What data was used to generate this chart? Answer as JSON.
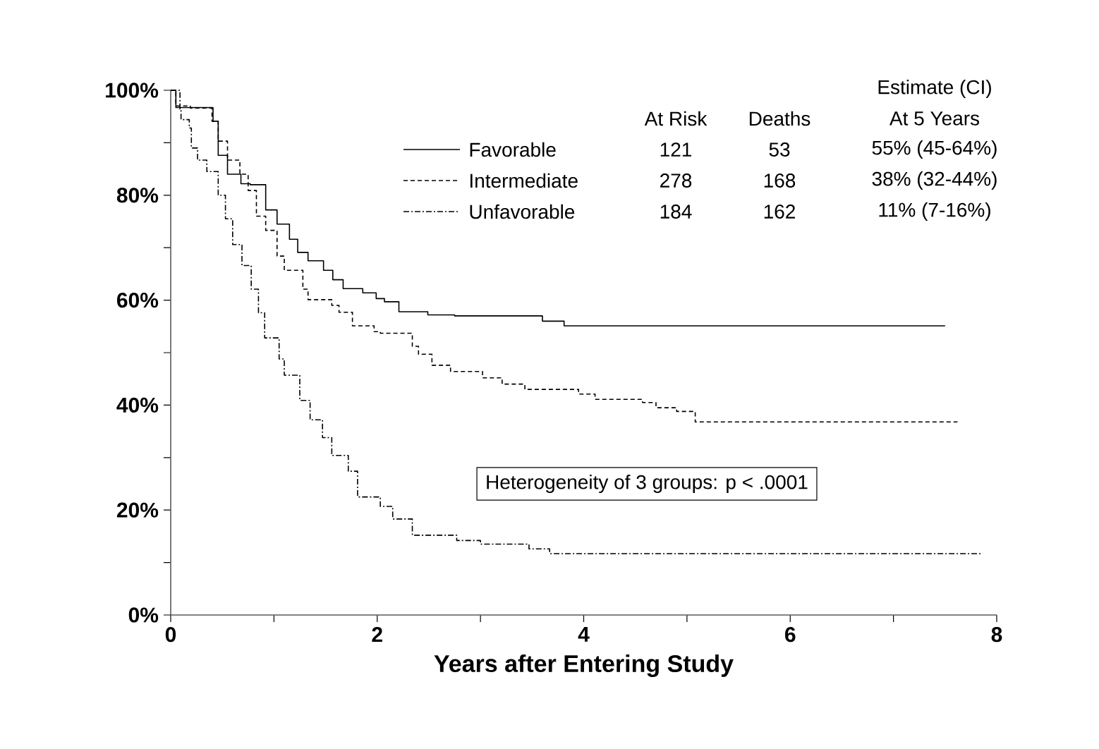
{
  "chart_data": {
    "type": "step",
    "xlabel": "Years after Entering Study",
    "xlim": [
      0,
      8
    ],
    "ylim": [
      0,
      100
    ],
    "xticks": [
      0,
      {
        "value": 1,
        "label": null
      },
      2,
      {
        "value": 3,
        "label": null
      },
      4,
      {
        "value": 5,
        "label": null
      },
      6,
      {
        "value": 7,
        "label": null
      },
      8
    ],
    "yticks": [
      {
        "value": 0,
        "label": "0%"
      },
      {
        "value": 10,
        "label": null
      },
      {
        "value": 20,
        "label": "20%"
      },
      {
        "value": 30,
        "label": null
      },
      {
        "value": 40,
        "label": "40%"
      },
      {
        "value": 50,
        "label": null
      },
      {
        "value": 60,
        "label": "60%"
      },
      {
        "value": 70,
        "label": null
      },
      {
        "value": 80,
        "label": "80%"
      },
      {
        "value": 90,
        "label": null
      },
      {
        "value": 100,
        "label": "100%"
      }
    ],
    "grid": false,
    "legend": "top",
    "series": [
      {
        "name": "Favorable",
        "color": "#000000",
        "line_style": "solid",
        "x": [
          0,
          0.05,
          0.41,
          0.46,
          0.55,
          0.68,
          0.77,
          0.92,
          1.03,
          1.15,
          1.23,
          1.33,
          1.48,
          1.57,
          1.67,
          1.86,
          1.99,
          2.07,
          2.21,
          2.49,
          2.75,
          3.6,
          3.81,
          7.5
        ],
        "values": [
          100,
          96.7,
          94.1,
          87.6,
          84.0,
          82.2,
          82.0,
          77.2,
          74.5,
          71.6,
          69.1,
          67.5,
          65.7,
          63.9,
          62.2,
          61.4,
          60.3,
          59.7,
          57.8,
          57.2,
          57.0,
          56.0,
          55.1,
          55.1
        ]
      },
      {
        "name": "Intermediate",
        "color": "#000000",
        "line_style": "dashed",
        "x": [
          0,
          0.05,
          0.19,
          0.4,
          0.46,
          0.55,
          0.67,
          0.75,
          0.83,
          0.92,
          1.03,
          1.1,
          1.28,
          1.33,
          1.56,
          1.63,
          1.76,
          1.97,
          2.03,
          2.34,
          2.4,
          2.53,
          2.71,
          3.02,
          3.21,
          3.43,
          3.95,
          4.11,
          4.57,
          4.7,
          4.9,
          5.08,
          7.62
        ],
        "values": [
          100,
          97,
          96.6,
          94.1,
          90.3,
          86.7,
          84.0,
          80.9,
          76.0,
          73.3,
          68.4,
          65.7,
          62.1,
          60.1,
          59.0,
          57.7,
          55.1,
          54.0,
          53.7,
          51.2,
          49.7,
          47.6,
          46.4,
          45.2,
          44.0,
          43.0,
          42.1,
          41.1,
          40.5,
          39.5,
          38.8,
          36.8,
          36.8
        ]
      },
      {
        "name": "Unfavorable",
        "color": "#000000",
        "line_style": "dashdot",
        "x": [
          0,
          0.09,
          0.1,
          0.18,
          0.2,
          0.26,
          0.35,
          0.46,
          0.53,
          0.6,
          0.69,
          0.78,
          0.85,
          0.91,
          1.05,
          1.1,
          1.25,
          1.35,
          1.47,
          1.56,
          1.72,
          1.81,
          2.03,
          2.15,
          2.34,
          2.77,
          3.0,
          3.47,
          3.67,
          7.86
        ],
        "values": [
          100,
          96.4,
          94.4,
          92.8,
          89.0,
          86.7,
          84.5,
          80.0,
          75.5,
          70.6,
          66.6,
          62.1,
          57.6,
          52.8,
          48.8,
          45.7,
          40.9,
          37.2,
          33.8,
          30.4,
          27.4,
          22.5,
          20.7,
          18.3,
          15.2,
          14.2,
          13.5,
          12.6,
          11.7,
          11.7
        ]
      }
    ],
    "annotations": [
      "Estimate (CI)",
      "At Risk",
      "Deaths",
      "At 5 Years",
      "121",
      "53",
      "55% (45-64%)",
      "278",
      "168",
      "38% (32-44%)",
      "184",
      "162",
      "11% (7-16%)",
      "Heterogeneity of 3 groups: p < .0001"
    ]
  }
}
